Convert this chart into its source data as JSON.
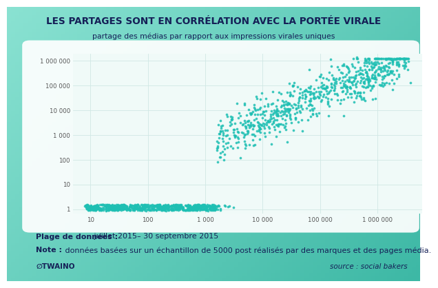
{
  "title": "LES PARTAGES SONT EN CORRÉLATION AVEC LA PORTÉE VIRALE",
  "subtitle": "partage des médias par rapport aux impressions virales uniques",
  "bg_color_left": "#7de0cc",
  "bg_color_right": "#4db8a8",
  "plot_bg_color": "#f0faf8",
  "dot_color": "#1ebfb3",
  "dot_alpha": 0.85,
  "dot_size": 7,
  "xmin": 5,
  "xmax": 6000000,
  "ymin": 0.65,
  "ymax": 2000000,
  "xticks": [
    10,
    100,
    1000,
    10000,
    100000,
    1000000
  ],
  "yticks": [
    1,
    10,
    100,
    1000,
    10000,
    100000,
    1000000
  ],
  "xtick_labels": [
    "10",
    "100",
    "1 000",
    "10 000",
    "100 000",
    "1 000 000"
  ],
  "ytick_labels": [
    "1",
    "10",
    "100",
    "1 000",
    "10 000",
    "100 000",
    "1 000 000"
  ],
  "note_bold": "Plage de données :",
  "note_text": " juillet 2015– 30 septembre 2015",
  "note2_bold": "Note :",
  "note2_text": " données basées sur un échantillon de 5000 post réalisés par des marques et des pages média.",
  "logo_text": "∅TWAINO",
  "source_text": "source : social bakers",
  "title_color": "#152057",
  "text_color": "#152057",
  "grid_color": "#d0e8e4",
  "seed": 42,
  "n_points": 1200
}
